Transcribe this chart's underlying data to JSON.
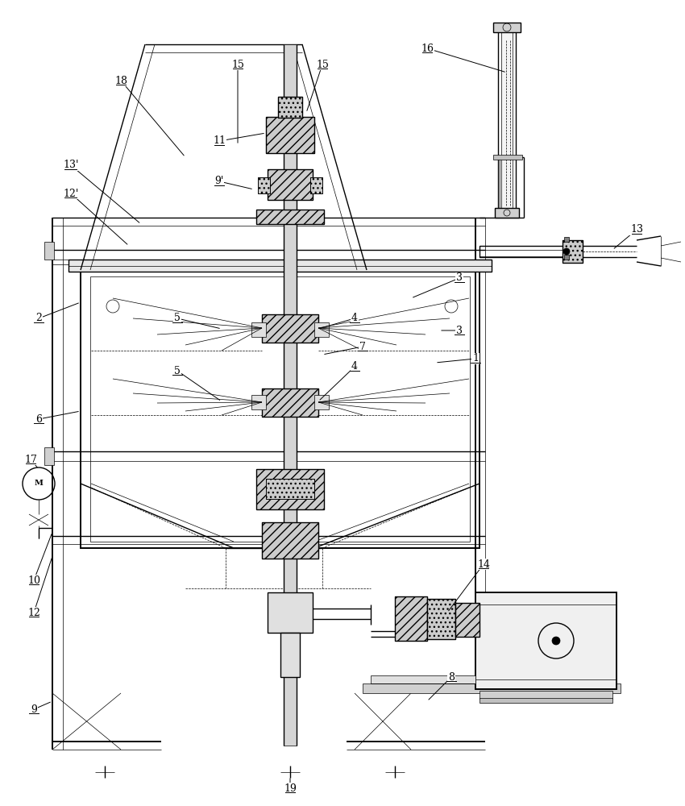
{
  "bg_color": "#ffffff",
  "fig_width": 8.5,
  "fig_height": 10.0,
  "lw_main": 1.0,
  "lw_thin": 0.5,
  "lw_thick": 1.4
}
